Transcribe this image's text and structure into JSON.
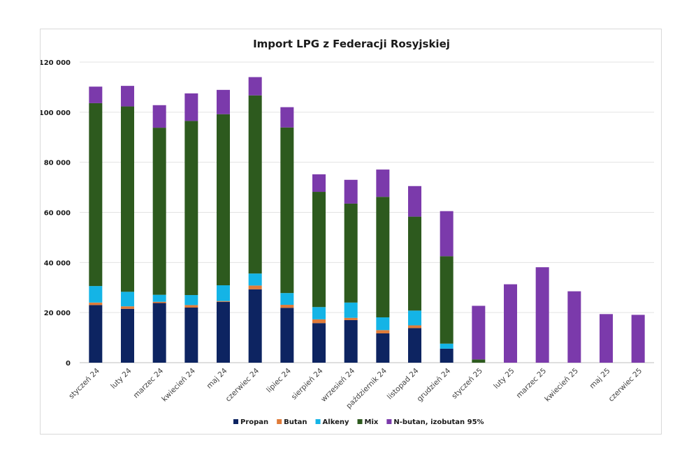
{
  "chart_data": {
    "type": "bar",
    "stacked": true,
    "title": "Import LPG z Federacji Rosyjskiej",
    "xlabel": "",
    "ylabel": "",
    "ylim": [
      0,
      120000
    ],
    "yticks": [
      0,
      20000,
      40000,
      60000,
      80000,
      100000,
      120000
    ],
    "ytick_labels": [
      "0",
      "20 000",
      "40 000",
      "60 000",
      "80 000",
      "100 000",
      "120 000"
    ],
    "grid": true,
    "legend_position": "bottom",
    "categories": [
      "styczeń 24",
      "luty 24",
      "marzec 24",
      "kwiecień 24",
      "maj 24",
      "czerwiec 24",
      "lipiec 24",
      "sierpień 24",
      "wrzesień 24",
      "październik 24",
      "listopad 24",
      "grudzień 24",
      "styczeń 25",
      "luty 25",
      "marzec 25",
      "kwiecień 25",
      "maj 25",
      "czerwiec 25"
    ],
    "series": [
      {
        "name": "Propan",
        "color": "#0d2461",
        "values": [
          23000,
          21500,
          23800,
          22000,
          24300,
          29300,
          21900,
          15800,
          17000,
          11700,
          13800,
          5600,
          0,
          0,
          0,
          0,
          0,
          0
        ]
      },
      {
        "name": "Butan",
        "color": "#e07b39",
        "values": [
          1000,
          1000,
          500,
          1000,
          300,
          1500,
          1200,
          1500,
          900,
          1300,
          1100,
          0,
          0,
          0,
          0,
          0,
          0,
          0
        ]
      },
      {
        "name": "Alkeny",
        "color": "#14b4e6",
        "values": [
          6600,
          5800,
          2800,
          4000,
          6300,
          4800,
          4700,
          4900,
          6100,
          5100,
          5900,
          2000,
          0,
          0,
          0,
          0,
          0,
          0
        ]
      },
      {
        "name": "Mix",
        "color": "#2d5a1e",
        "values": [
          73000,
          74000,
          66700,
          69500,
          68300,
          71100,
          66100,
          46000,
          39500,
          48100,
          37500,
          34900,
          1300,
          0,
          0,
          0,
          0,
          0
        ]
      },
      {
        "name": "N-butan, izobutan 95%",
        "color": "#7b3aab",
        "values": [
          6600,
          8200,
          9000,
          11000,
          9700,
          7300,
          8100,
          7000,
          9500,
          10900,
          12200,
          18000,
          21400,
          31300,
          38100,
          28500,
          19400,
          19100
        ]
      }
    ]
  }
}
